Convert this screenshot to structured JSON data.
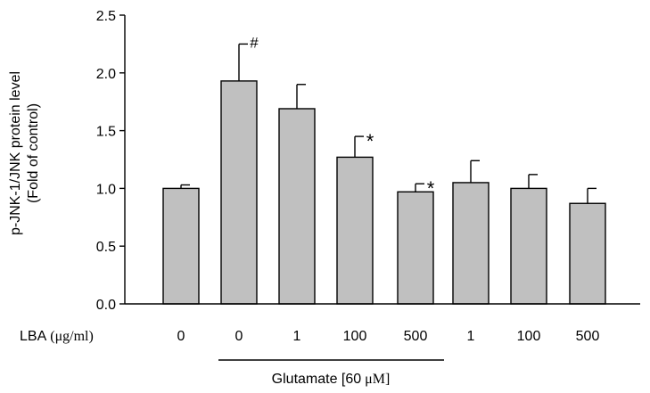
{
  "chart_data": {
    "type": "bar",
    "ylabel": "p-JNK-1/JNK  protein level",
    "ylabel_sub": "(Fold of control)",
    "ylim": [
      0,
      2.5
    ],
    "yticks": [
      "0.0",
      "0.5",
      "1.0",
      "1.5",
      "2.0",
      "2.5"
    ],
    "row_label_sans": "LBA",
    "row_label_unit": "(μg/ml)",
    "categories": [
      "0",
      "0",
      "1",
      "100",
      "500",
      "1",
      "100",
      "500"
    ],
    "values": [
      1.0,
      1.93,
      1.69,
      1.27,
      0.97,
      1.05,
      1.0,
      0.87
    ],
    "errors": [
      0.03,
      0.32,
      0.21,
      0.18,
      0.07,
      0.19,
      0.12,
      0.13
    ],
    "annotations": [
      "",
      "#",
      "",
      "*",
      "*",
      "",
      "",
      ""
    ],
    "group_label_sans": "Glutamate [60",
    "group_label_unit": "μM]",
    "bar_color": "#c0c0c0",
    "edge_color": "#000000"
  }
}
